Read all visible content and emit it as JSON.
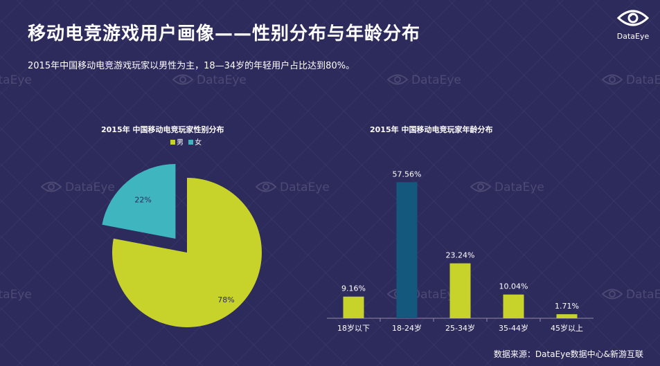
{
  "header": {
    "title": "移动电竞游戏用户画像——性别分布与年龄分布",
    "subtitle": "2015年中国移动电竞游戏玩家以男性为主，18—34岁的年轻用户占比达到80%。"
  },
  "logo": {
    "text": "DataEye",
    "icon": "eye-icon"
  },
  "watermark": {
    "text": "DataEye",
    "icon": "eye-icon"
  },
  "source": "数据来源：DataEye数据中心&新游互联",
  "colors": {
    "background": "#2d2a5c",
    "male": "#c7d22a",
    "female": "#3fb6bf",
    "highlight_bar": "#14587e",
    "bar": "#c7d22a"
  },
  "chart_data": [
    {
      "type": "pie",
      "title": "2015年 中国移动电竞玩家性别分布",
      "legend_position": "top",
      "slices": [
        {
          "label": "男",
          "value": 78,
          "display": "78%"
        },
        {
          "label": "女",
          "value": 22,
          "display": "22%"
        }
      ]
    },
    {
      "type": "bar",
      "title": "2015年 中国移动电竞玩家年龄分布",
      "categories": [
        "18岁以下",
        "18-24岁",
        "25-34岁",
        "35-44岁",
        "45岁以上"
      ],
      "values": [
        9.16,
        57.56,
        23.24,
        10.04,
        1.71
      ],
      "labels": [
        "9.16%",
        "57.56%",
        "23.24%",
        "10.04%",
        "1.71%"
      ],
      "highlight_index": 1,
      "ylim": [
        0,
        60
      ],
      "grid": false
    }
  ]
}
